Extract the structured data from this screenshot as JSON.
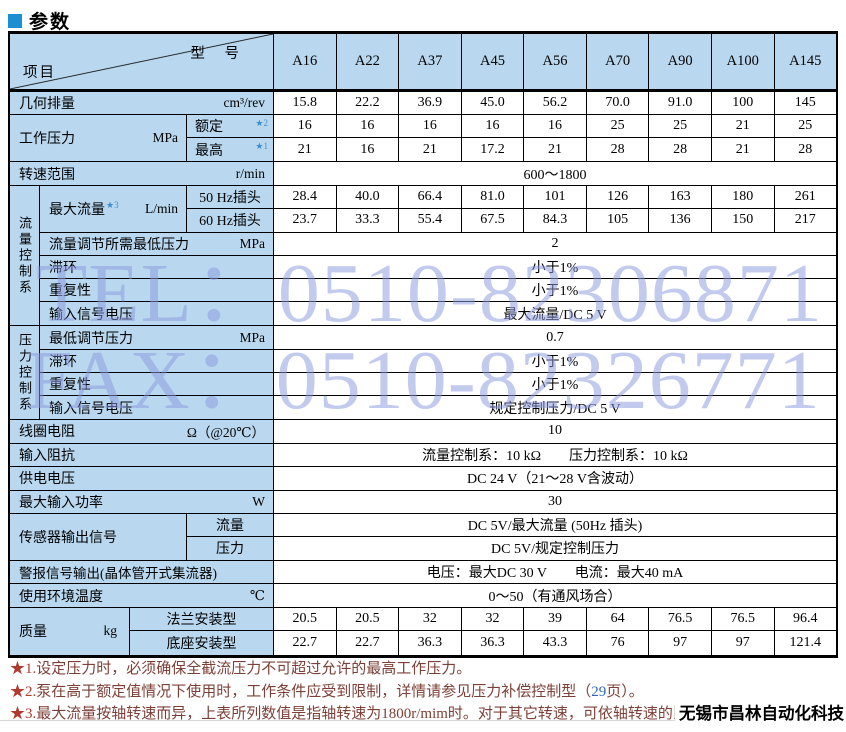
{
  "title": "参数",
  "accent_color": "#1a8fd2",
  "watermark": {
    "line1": "TEL：0510-82306871",
    "line2": "FAX：0510-82326771",
    "color": "#8c9ade"
  },
  "badge": "无锡市昌林自动化科技",
  "table": {
    "corner": {
      "top_right": "型  号",
      "bottom_left": "项目"
    },
    "models": [
      "A16",
      "A22",
      "A37",
      "A45",
      "A56",
      "A70",
      "A90",
      "A100",
      "A145"
    ],
    "displacement": {
      "label": "几何排量",
      "unit": "cm³/rev",
      "values": [
        "15.8",
        "22.2",
        "36.9",
        "45.0",
        "56.2",
        "70.0",
        "91.0",
        "100",
        "145"
      ]
    },
    "working_pressure": {
      "label": "工作压力",
      "unit": "MPa",
      "rated": {
        "label": "额定",
        "star": "★2",
        "values": [
          "16",
          "16",
          "16",
          "16",
          "16",
          "25",
          "25",
          "21",
          "25"
        ]
      },
      "max": {
        "label": "最高",
        "star": "★1",
        "values": [
          "21",
          "16",
          "21",
          "17.2",
          "21",
          "28",
          "28",
          "21",
          "28"
        ]
      }
    },
    "speed_range": {
      "label": "转速范围",
      "unit": "r/min",
      "value": "600～1800"
    },
    "flow_section": {
      "vertical_label": "流量控制系",
      "max_flow": {
        "label": "最大流量",
        "star": "★3",
        "unit": "L/min",
        "hz50": {
          "label": "50 Hz插头",
          "values": [
            "28.4",
            "40.0",
            "66.4",
            "81.0",
            "101",
            "126",
            "163",
            "180",
            "261"
          ]
        },
        "hz60": {
          "label": "60 Hz插头",
          "values": [
            "23.7",
            "33.3",
            "55.4",
            "67.5",
            "84.3",
            "105",
            "136",
            "150",
            "217"
          ]
        }
      },
      "min_pressure": {
        "label": "流量调节所需最低压力",
        "unit": "MPa",
        "value": "2"
      },
      "hysteresis": {
        "label": "滞环",
        "value": "小于1%"
      },
      "repeatability": {
        "label": "重复性",
        "value": "小于1%"
      },
      "input_signal": {
        "label": "输入信号电压",
        "value": "最大流量/DC 5 V"
      }
    },
    "pressure_section": {
      "vertical_label": "压力控制系",
      "min_adjust": {
        "label": "最低调节压力",
        "unit": "MPa",
        "value": "0.7"
      },
      "hysteresis": {
        "label": "滞环",
        "value": "小于1%"
      },
      "repeatability": {
        "label": "重复性",
        "value": "小于1%"
      },
      "input_signal": {
        "label": "输入信号电压",
        "value": "规定控制压力/DC 5 V"
      }
    },
    "coil_resistance": {
      "label": "线圈电阻",
      "unit": "Ω（@20℃）",
      "value": "10"
    },
    "input_impedance": {
      "label": "输入阻抗",
      "value": "流量控制系：10 kΩ　　压力控制系：10 kΩ"
    },
    "supply_voltage": {
      "label": "供电电压",
      "value": "DC 24 V（21～28 V含波动）"
    },
    "max_input_power": {
      "label": "最大输入功率",
      "unit": "W",
      "value": "30"
    },
    "sensor_output": {
      "label": "传感器输出信号",
      "flow": {
        "label": "流量",
        "value": "DC 5V/最大流量 (50Hz 插头)"
      },
      "pressure": {
        "label": "压力",
        "value": "DC 5V/规定控制压力"
      }
    },
    "alarm_output": {
      "label": "警报信号输出(晶体管开式集流器)",
      "value": "电压：最大DC 30 V　　电流：最大40 mA"
    },
    "ambient_temp": {
      "label": "使用环境温度",
      "unit": "℃",
      "value": "0～50（有通风场合）"
    },
    "mass": {
      "label": "质量",
      "unit": "kg",
      "flange": {
        "label": "法兰安装型",
        "values": [
          "20.5",
          "20.5",
          "32",
          "32",
          "39",
          "64",
          "76.5",
          "76.5",
          "96.4"
        ]
      },
      "base": {
        "label": "底座安装型",
        "values": [
          "22.7",
          "22.7",
          "36.3",
          "36.3",
          "43.3",
          "76",
          "97",
          "97",
          "121.4"
        ]
      }
    }
  },
  "notes": [
    {
      "star": "★1.",
      "text": "设定压力时，必须确保全截流压力不可超过允许的最高工作压力。"
    },
    {
      "star": "★2.",
      "pre": "泵在高于额定值情况下使用时，工作条件应受到限制，详情请参见压力补偿控制型（",
      "page": "29",
      "post": "页）。"
    },
    {
      "star": "★3.",
      "text": "最大流量按轴转速而异，上表所列数值是指轴转速为1800r/mim时。对于其它转速，可依轴转速的比"
    }
  ]
}
